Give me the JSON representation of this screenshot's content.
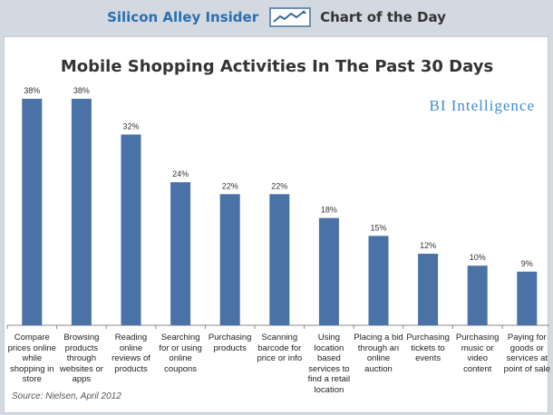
{
  "header": {
    "brand": "Silicon Alley Insider",
    "chart_of_day": "Chart of the Day",
    "logo_icon": "chart-line-icon"
  },
  "watermark": "BI Intelligence",
  "source": "Source: Nielsen, April 2012",
  "colors": {
    "bar": "#4a72a6",
    "brand": "#2a6fb0",
    "watermark": "#3f8bd0"
  },
  "chart_data": {
    "type": "bar",
    "title": "Mobile Shopping Activities In The Past 30 Days",
    "xlabel": "",
    "ylabel": "",
    "ylim": [
      0,
      40
    ],
    "grid": false,
    "categories": [
      "Compare prices online while shopping in store",
      "Browsing products through websites or apps",
      "Reading online reviews of products",
      "Searching for or using online coupons",
      "Purchasing products",
      "Scanning barcode for price or info",
      "Using location based services to find a retail location",
      "Placing a bid through an online auction",
      "Purchasing tickets to events",
      "Purchasing music or video content",
      "Paying for goods or services at point of sale"
    ],
    "values": [
      38,
      38,
      32,
      24,
      22,
      22,
      18,
      15,
      12,
      10,
      9
    ],
    "value_labels": [
      "38%",
      "38%",
      "32%",
      "24%",
      "22%",
      "22%",
      "18%",
      "15%",
      "12%",
      "10%",
      "9%"
    ]
  }
}
